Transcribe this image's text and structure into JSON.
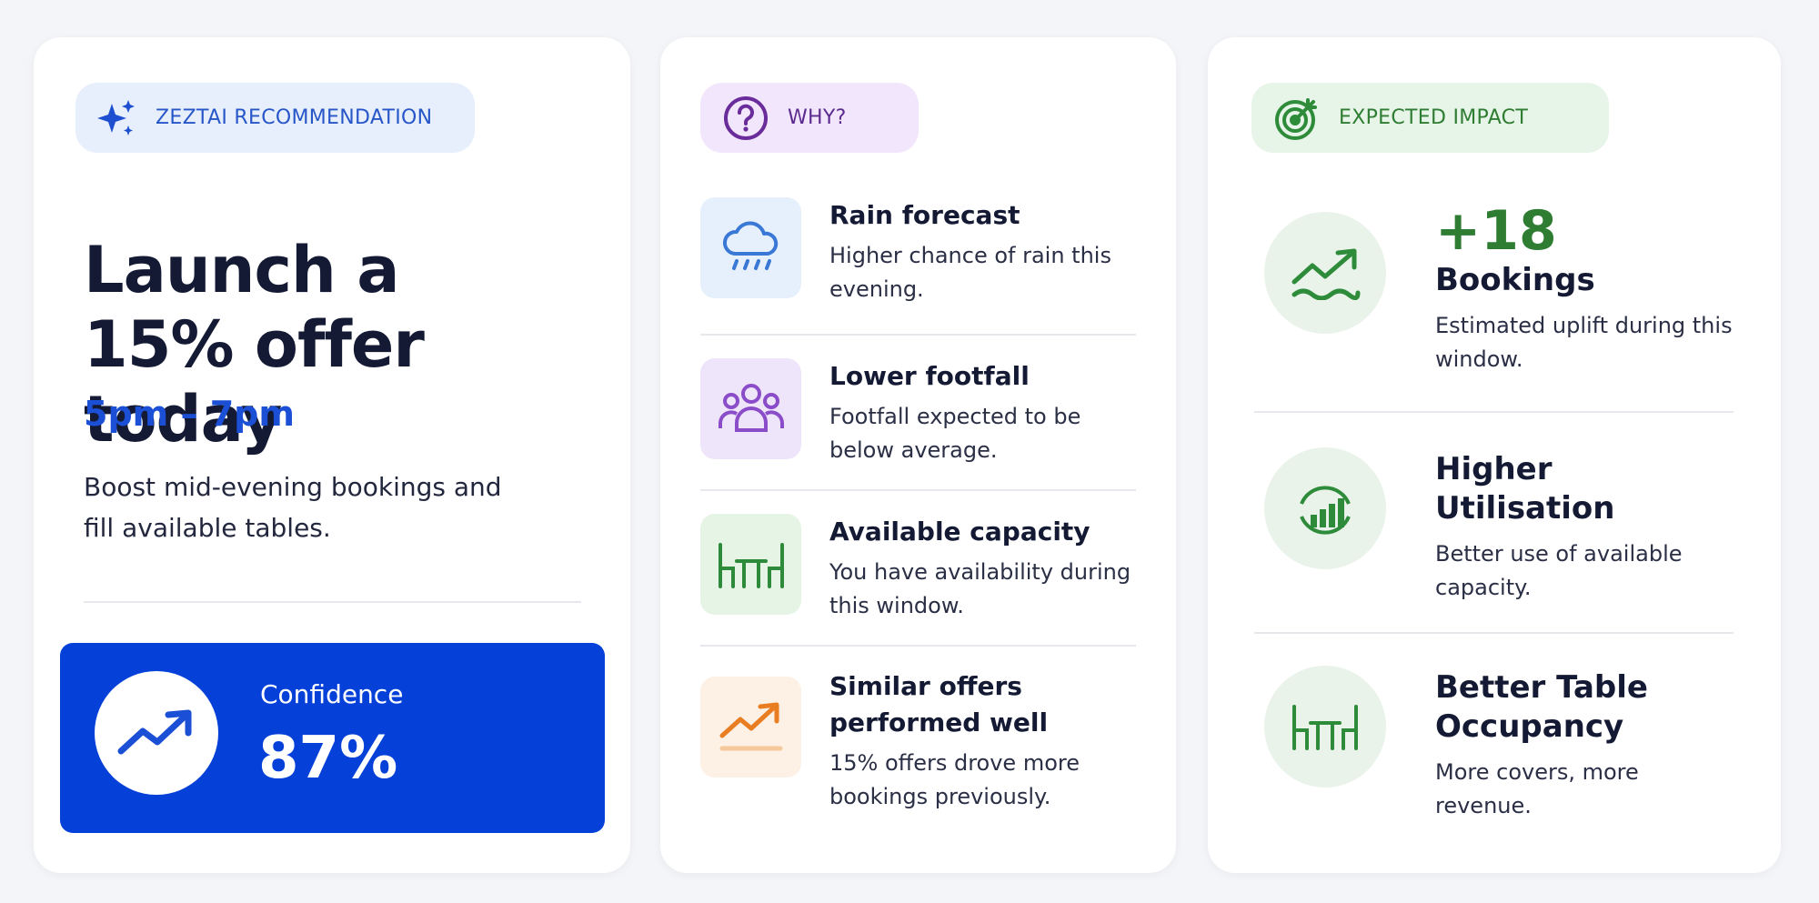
{
  "recommendation": {
    "badge": "ZEZTAI RECOMMENDATION",
    "title": "Launch a 15% offer today",
    "time": "5pm – 7pm",
    "description": "Boost mid-evening bookings and fill available tables.",
    "confidence": {
      "label": "Confidence",
      "value": "87%"
    }
  },
  "why": {
    "badge": "WHY?",
    "items": [
      {
        "title": "Rain forecast",
        "text": "Higher chance of rain this evening."
      },
      {
        "title": "Lower footfall",
        "text": "Footfall expected to be below average."
      },
      {
        "title": "Available capacity",
        "text": "You have availability during this window."
      },
      {
        "title": "Similar offers performed well",
        "text": "15% offers drove more bookings previously."
      }
    ]
  },
  "impact": {
    "badge": "EXPECTED IMPACT",
    "items": [
      {
        "value": "+18",
        "title": "Bookings",
        "text": "Estimated uplift during this window."
      },
      {
        "title": "Higher Utilisation",
        "text": "Better use of available capacity."
      },
      {
        "title": "Better Table Occupancy",
        "text": "More covers, more revenue."
      }
    ]
  }
}
